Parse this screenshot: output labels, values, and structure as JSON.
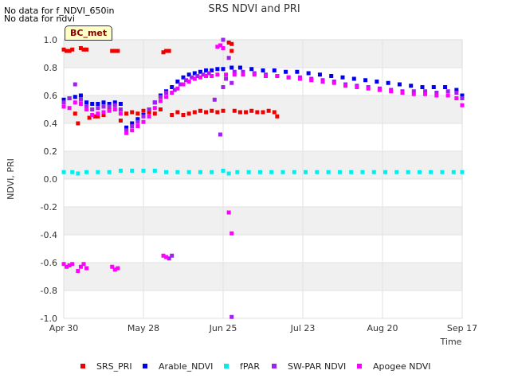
{
  "messages": [
    "No data for f_NDVI_650in",
    "No data for ndvi"
  ],
  "badge": "BC_met",
  "chart_data": {
    "type": "scatter",
    "title": "SRS NDVI and PRI",
    "xlabel": "Time",
    "ylabel": "NDVI, PRI",
    "xlim": [
      "2023-04-30",
      "2023-09-17"
    ],
    "xticks": [
      "Apr 30",
      "May 28",
      "Jun 25",
      "Jul 23",
      "Aug 20",
      "Sep 17"
    ],
    "ylim": [
      -1.0,
      1.0
    ],
    "yticks": [
      "-1.0",
      "-0.8",
      "-0.6",
      "-0.4",
      "-0.2",
      "0.0",
      "0.2",
      "0.4",
      "0.6",
      "0.8",
      "1.0"
    ],
    "legend_position": "bottom",
    "series": [
      {
        "name": "SRS_PRI",
        "color": "#ee0000",
        "points": [
          [
            "2023-04-30",
            0.93
          ],
          [
            "2023-05-01",
            0.92
          ],
          [
            "2023-05-02",
            0.92
          ],
          [
            "2023-05-03",
            0.93
          ],
          [
            "2023-05-04",
            0.47
          ],
          [
            "2023-05-05",
            0.4
          ],
          [
            "2023-05-06",
            0.94
          ],
          [
            "2023-05-07",
            0.93
          ],
          [
            "2023-05-08",
            0.93
          ],
          [
            "2023-05-09",
            0.44
          ],
          [
            "2023-05-11",
            0.45
          ],
          [
            "2023-05-12",
            0.45
          ],
          [
            "2023-05-14",
            0.46
          ],
          [
            "2023-05-16",
            0.5
          ],
          [
            "2023-05-17",
            0.92
          ],
          [
            "2023-05-18",
            0.92
          ],
          [
            "2023-05-19",
            0.92
          ],
          [
            "2023-05-20",
            0.42
          ],
          [
            "2023-05-22",
            0.47
          ],
          [
            "2023-05-24",
            0.48
          ],
          [
            "2023-05-26",
            0.47
          ],
          [
            "2023-05-28",
            0.49
          ],
          [
            "2023-05-30",
            0.48
          ],
          [
            "2023-06-01",
            0.47
          ],
          [
            "2023-06-03",
            0.5
          ],
          [
            "2023-06-04",
            0.91
          ],
          [
            "2023-06-05",
            0.92
          ],
          [
            "2023-06-06",
            0.92
          ],
          [
            "2023-06-07",
            0.46
          ],
          [
            "2023-06-09",
            0.48
          ],
          [
            "2023-06-11",
            0.46
          ],
          [
            "2023-06-13",
            0.47
          ],
          [
            "2023-06-15",
            0.48
          ],
          [
            "2023-06-17",
            0.49
          ],
          [
            "2023-06-19",
            0.48
          ],
          [
            "2023-06-21",
            0.49
          ],
          [
            "2023-06-23",
            0.48
          ],
          [
            "2023-06-25",
            0.49
          ],
          [
            "2023-06-27",
            0.98
          ],
          [
            "2023-06-28",
            0.97
          ],
          [
            "2023-06-28",
            0.92
          ],
          [
            "2023-06-29",
            0.49
          ],
          [
            "2023-07-01",
            0.48
          ],
          [
            "2023-07-03",
            0.48
          ],
          [
            "2023-07-05",
            0.49
          ],
          [
            "2023-07-07",
            0.48
          ],
          [
            "2023-07-09",
            0.48
          ],
          [
            "2023-07-11",
            0.49
          ],
          [
            "2023-07-13",
            0.48
          ],
          [
            "2023-07-14",
            0.45
          ]
        ]
      },
      {
        "name": "Arable_NDVI",
        "color": "#0000ee",
        "points": [
          [
            "2023-04-30",
            0.57
          ],
          [
            "2023-05-02",
            0.58
          ],
          [
            "2023-05-04",
            0.59
          ],
          [
            "2023-05-06",
            0.6
          ],
          [
            "2023-05-08",
            0.55
          ],
          [
            "2023-05-10",
            0.54
          ],
          [
            "2023-05-12",
            0.54
          ],
          [
            "2023-05-14",
            0.55
          ],
          [
            "2023-05-16",
            0.54
          ],
          [
            "2023-05-18",
            0.55
          ],
          [
            "2023-05-20",
            0.54
          ],
          [
            "2023-05-22",
            0.37
          ],
          [
            "2023-05-24",
            0.4
          ],
          [
            "2023-05-26",
            0.43
          ],
          [
            "2023-05-28",
            0.46
          ],
          [
            "2023-05-30",
            0.5
          ],
          [
            "2023-06-01",
            0.55
          ],
          [
            "2023-06-03",
            0.6
          ],
          [
            "2023-06-05",
            0.63
          ],
          [
            "2023-06-07",
            0.66
          ],
          [
            "2023-06-09",
            0.7
          ],
          [
            "2023-06-11",
            0.73
          ],
          [
            "2023-06-13",
            0.75
          ],
          [
            "2023-06-15",
            0.76
          ],
          [
            "2023-06-17",
            0.77
          ],
          [
            "2023-06-19",
            0.78
          ],
          [
            "2023-06-21",
            0.78
          ],
          [
            "2023-06-23",
            0.79
          ],
          [
            "2023-06-25",
            0.79
          ],
          [
            "2023-06-28",
            0.8
          ],
          [
            "2023-07-01",
            0.8
          ],
          [
            "2023-07-05",
            0.79
          ],
          [
            "2023-07-09",
            0.78
          ],
          [
            "2023-07-13",
            0.78
          ],
          [
            "2023-07-17",
            0.77
          ],
          [
            "2023-07-21",
            0.77
          ],
          [
            "2023-07-25",
            0.76
          ],
          [
            "2023-07-29",
            0.75
          ],
          [
            "2023-08-02",
            0.74
          ],
          [
            "2023-08-06",
            0.73
          ],
          [
            "2023-08-10",
            0.72
          ],
          [
            "2023-08-14",
            0.71
          ],
          [
            "2023-08-18",
            0.7
          ],
          [
            "2023-08-22",
            0.69
          ],
          [
            "2023-08-26",
            0.68
          ],
          [
            "2023-08-30",
            0.67
          ],
          [
            "2023-09-03",
            0.66
          ],
          [
            "2023-09-07",
            0.66
          ],
          [
            "2023-09-11",
            0.66
          ],
          [
            "2023-09-15",
            0.64
          ],
          [
            "2023-09-17",
            0.6
          ]
        ]
      },
      {
        "name": "fPAR",
        "color": "#00eeee",
        "points": [
          [
            "2023-04-30",
            0.05
          ],
          [
            "2023-05-03",
            0.05
          ],
          [
            "2023-05-05",
            0.04
          ],
          [
            "2023-05-08",
            0.05
          ],
          [
            "2023-05-12",
            0.05
          ],
          [
            "2023-05-16",
            0.05
          ],
          [
            "2023-05-20",
            0.06
          ],
          [
            "2023-05-24",
            0.06
          ],
          [
            "2023-05-28",
            0.06
          ],
          [
            "2023-06-01",
            0.06
          ],
          [
            "2023-06-05",
            0.05
          ],
          [
            "2023-06-09",
            0.05
          ],
          [
            "2023-06-13",
            0.05
          ],
          [
            "2023-06-17",
            0.05
          ],
          [
            "2023-06-21",
            0.05
          ],
          [
            "2023-06-25",
            0.06
          ],
          [
            "2023-06-27",
            0.04
          ],
          [
            "2023-06-30",
            0.05
          ],
          [
            "2023-07-04",
            0.05
          ],
          [
            "2023-07-08",
            0.05
          ],
          [
            "2023-07-12",
            0.05
          ],
          [
            "2023-07-16",
            0.05
          ],
          [
            "2023-07-20",
            0.05
          ],
          [
            "2023-07-24",
            0.05
          ],
          [
            "2023-07-28",
            0.05
          ],
          [
            "2023-08-01",
            0.05
          ],
          [
            "2023-08-05",
            0.05
          ],
          [
            "2023-08-09",
            0.05
          ],
          [
            "2023-08-13",
            0.05
          ],
          [
            "2023-08-17",
            0.05
          ],
          [
            "2023-08-21",
            0.05
          ],
          [
            "2023-08-25",
            0.05
          ],
          [
            "2023-08-29",
            0.05
          ],
          [
            "2023-09-02",
            0.05
          ],
          [
            "2023-09-06",
            0.05
          ],
          [
            "2023-09-10",
            0.05
          ],
          [
            "2023-09-14",
            0.05
          ],
          [
            "2023-09-17",
            0.05
          ]
        ]
      },
      {
        "name": "SW-PAR NDVI",
        "color": "#a020f0",
        "points": [
          [
            "2023-04-30",
            0.55
          ],
          [
            "2023-05-02",
            0.58
          ],
          [
            "2023-05-04",
            0.68
          ],
          [
            "2023-05-06",
            0.57
          ],
          [
            "2023-05-08",
            0.52
          ],
          [
            "2023-05-10",
            0.5
          ],
          [
            "2023-05-12",
            0.51
          ],
          [
            "2023-05-14",
            0.52
          ],
          [
            "2023-05-16",
            0.52
          ],
          [
            "2023-05-18",
            0.53
          ],
          [
            "2023-05-20",
            0.5
          ],
          [
            "2023-05-22",
            0.35
          ],
          [
            "2023-05-24",
            0.38
          ],
          [
            "2023-05-26",
            0.41
          ],
          [
            "2023-05-28",
            0.45
          ],
          [
            "2023-05-30",
            0.5
          ],
          [
            "2023-06-01",
            0.55
          ],
          [
            "2023-06-03",
            0.59
          ],
          [
            "2023-06-05",
            0.62
          ],
          [
            "2023-06-06",
            -0.57
          ],
          [
            "2023-06-07",
            -0.55
          ],
          [
            "2023-06-08",
            0.64
          ],
          [
            "2023-06-10",
            0.68
          ],
          [
            "2023-06-12",
            0.71
          ],
          [
            "2023-06-14",
            0.73
          ],
          [
            "2023-06-16",
            0.74
          ],
          [
            "2023-06-18",
            0.75
          ],
          [
            "2023-06-20",
            0.76
          ],
          [
            "2023-06-22",
            0.57
          ],
          [
            "2023-06-24",
            0.32
          ],
          [
            "2023-06-24",
            0.96
          ],
          [
            "2023-06-25",
            1.0
          ],
          [
            "2023-06-25",
            0.66
          ],
          [
            "2023-06-26",
            0.72
          ],
          [
            "2023-06-27",
            0.87
          ],
          [
            "2023-06-28",
            -0.99
          ],
          [
            "2023-06-28",
            0.69
          ],
          [
            "2023-06-29",
            0.77
          ],
          [
            "2023-07-02",
            0.77
          ],
          [
            "2023-07-06",
            0.76
          ],
          [
            "2023-07-10",
            0.75
          ],
          [
            "2023-07-14",
            0.74
          ],
          [
            "2023-07-18",
            0.73
          ],
          [
            "2023-07-22",
            0.73
          ],
          [
            "2023-07-26",
            0.72
          ],
          [
            "2023-07-30",
            0.71
          ],
          [
            "2023-08-03",
            0.7
          ],
          [
            "2023-08-07",
            0.68
          ],
          [
            "2023-08-11",
            0.67
          ],
          [
            "2023-08-15",
            0.66
          ],
          [
            "2023-08-19",
            0.65
          ],
          [
            "2023-08-23",
            0.64
          ],
          [
            "2023-08-27",
            0.63
          ],
          [
            "2023-08-31",
            0.63
          ],
          [
            "2023-09-04",
            0.63
          ],
          [
            "2023-09-08",
            0.62
          ],
          [
            "2023-09-12",
            0.63
          ],
          [
            "2023-09-15",
            0.62
          ],
          [
            "2023-09-17",
            0.58
          ]
        ]
      },
      {
        "name": "Apogee NDVI",
        "color": "#ff00ff",
        "points": [
          [
            "2023-04-30",
            -0.61
          ],
          [
            "2023-05-01",
            -0.63
          ],
          [
            "2023-05-02",
            -0.62
          ],
          [
            "2023-05-03",
            -0.61
          ],
          [
            "2023-05-05",
            -0.66
          ],
          [
            "2023-05-06",
            -0.63
          ],
          [
            "2023-05-07",
            -0.61
          ],
          [
            "2023-05-08",
            -0.64
          ],
          [
            "2023-05-17",
            -0.63
          ],
          [
            "2023-05-18",
            -0.65
          ],
          [
            "2023-05-19",
            -0.64
          ],
          [
            "2023-06-04",
            -0.55
          ],
          [
            "2023-06-05",
            -0.56
          ],
          [
            "2023-04-30",
            0.52
          ],
          [
            "2023-05-02",
            0.51
          ],
          [
            "2023-05-04",
            0.55
          ],
          [
            "2023-05-06",
            0.54
          ],
          [
            "2023-05-08",
            0.5
          ],
          [
            "2023-05-10",
            0.46
          ],
          [
            "2023-05-12",
            0.47
          ],
          [
            "2023-05-14",
            0.48
          ],
          [
            "2023-05-16",
            0.49
          ],
          [
            "2023-05-18",
            0.5
          ],
          [
            "2023-05-20",
            0.47
          ],
          [
            "2023-05-22",
            0.33
          ],
          [
            "2023-05-24",
            0.35
          ],
          [
            "2023-05-26",
            0.38
          ],
          [
            "2023-05-28",
            0.41
          ],
          [
            "2023-05-30",
            0.45
          ],
          [
            "2023-06-01",
            0.51
          ],
          [
            "2023-06-03",
            0.56
          ],
          [
            "2023-06-05",
            0.59
          ],
          [
            "2023-06-07",
            0.62
          ],
          [
            "2023-06-09",
            0.65
          ],
          [
            "2023-06-11",
            0.68
          ],
          [
            "2023-06-13",
            0.7
          ],
          [
            "2023-06-15",
            0.72
          ],
          [
            "2023-06-17",
            0.73
          ],
          [
            "2023-06-19",
            0.74
          ],
          [
            "2023-06-21",
            0.74
          ],
          [
            "2023-06-23",
            0.75
          ],
          [
            "2023-06-23",
            0.95
          ],
          [
            "2023-06-24",
            0.96
          ],
          [
            "2023-06-25",
            0.94
          ],
          [
            "2023-06-26",
            0.75
          ],
          [
            "2023-06-27",
            -0.24
          ],
          [
            "2023-06-28",
            -0.39
          ],
          [
            "2023-06-29",
            0.75
          ],
          [
            "2023-07-02",
            0.75
          ],
          [
            "2023-07-06",
            0.75
          ],
          [
            "2023-07-10",
            0.74
          ],
          [
            "2023-07-14",
            0.74
          ],
          [
            "2023-07-18",
            0.73
          ],
          [
            "2023-07-22",
            0.72
          ],
          [
            "2023-07-26",
            0.71
          ],
          [
            "2023-07-30",
            0.7
          ],
          [
            "2023-08-03",
            0.69
          ],
          [
            "2023-08-07",
            0.67
          ],
          [
            "2023-08-11",
            0.66
          ],
          [
            "2023-08-15",
            0.65
          ],
          [
            "2023-08-19",
            0.64
          ],
          [
            "2023-08-23",
            0.63
          ],
          [
            "2023-08-27",
            0.62
          ],
          [
            "2023-08-31",
            0.61
          ],
          [
            "2023-09-04",
            0.61
          ],
          [
            "2023-09-08",
            0.6
          ],
          [
            "2023-09-12",
            0.6
          ],
          [
            "2023-09-15",
            0.58
          ],
          [
            "2023-09-17",
            0.53
          ]
        ]
      }
    ]
  }
}
